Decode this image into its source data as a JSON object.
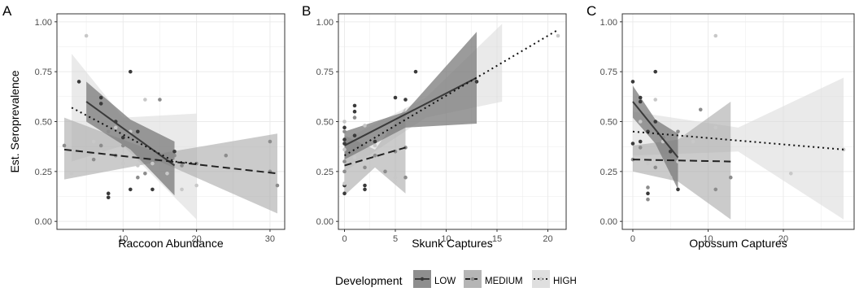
{
  "chart_data": [
    {
      "type": "scatter",
      "panel_label": "A",
      "xlabel": "Raccoon Abundance",
      "ylabel": "Est. Seroprevalence",
      "xlim": [
        1,
        32
      ],
      "ylim": [
        -0.04,
        1.04
      ],
      "xticks": [
        10,
        20,
        30
      ],
      "yticks": [
        0.0,
        0.25,
        0.5,
        0.75,
        1.0
      ],
      "ytick_labels": [
        "0.00",
        "0.25",
        "0.50",
        "0.75",
        "1.00"
      ],
      "grid": true,
      "series": [
        {
          "name": "LOW",
          "color": "#3a3a3a",
          "points": [
            [
              4,
              0.7
            ],
            [
              7,
              0.62
            ],
            [
              7,
              0.59
            ],
            [
              8,
              0.14
            ],
            [
              8,
              0.12
            ],
            [
              9,
              0.5
            ],
            [
              10,
              0.42
            ],
            [
              11,
              0.75
            ],
            [
              11,
              0.16
            ],
            [
              12,
              0.45
            ],
            [
              14,
              0.16
            ],
            [
              17,
              0.35
            ]
          ],
          "fit": [
            [
              5,
              0.6
            ],
            [
              17,
              0.28
            ]
          ],
          "band": [
            [
              5,
              0.7,
              0.5
            ],
            [
              11,
              0.51,
              0.36
            ],
            [
              17,
              0.4,
              0.13
            ]
          ]
        },
        {
          "name": "MEDIUM",
          "color": "#8c8c8c",
          "points": [
            [
              2,
              0.38
            ],
            [
              6,
              0.31
            ],
            [
              7,
              0.38
            ],
            [
              8,
              0.45
            ],
            [
              9,
              0.33
            ],
            [
              10,
              0.38
            ],
            [
              11,
              0.45
            ],
            [
              12,
              0.22
            ],
            [
              13,
              0.24
            ],
            [
              15,
              0.61
            ],
            [
              17,
              0.33
            ],
            [
              18,
              0.28
            ],
            [
              20,
              0.29
            ],
            [
              24,
              0.33
            ],
            [
              30,
              0.25
            ],
            [
              30,
              0.4
            ],
            [
              31,
              0.18
            ]
          ],
          "fit": [
            [
              2,
              0.36
            ],
            [
              31,
              0.24
            ]
          ],
          "band": [
            [
              2,
              0.52,
              0.21
            ],
            [
              15,
              0.34,
              0.3
            ],
            [
              31,
              0.44,
              0.04
            ]
          ]
        },
        {
          "name": "HIGH",
          "color": "#c8c8c8",
          "points": [
            [
              3,
              0.24
            ],
            [
              5,
              0.93
            ],
            [
              6,
              0.4
            ],
            [
              7,
              0.35
            ],
            [
              9,
              0.47
            ],
            [
              10,
              0.29
            ],
            [
              11,
              0.45
            ],
            [
              12,
              0.28
            ],
            [
              13,
              0.61
            ],
            [
              14,
              0.29
            ],
            [
              16,
              0.24
            ],
            [
              17,
              0.3
            ],
            [
              18,
              0.16
            ],
            [
              20,
              0.18
            ]
          ],
          "fit": [
            [
              3,
              0.57
            ],
            [
              17,
              0.3
            ],
            [
              20,
              0.29
            ]
          ],
          "band": [
            [
              3,
              0.84,
              0.3
            ],
            [
              10,
              0.52,
              0.38
            ],
            [
              20,
              0.54,
              0.01
            ]
          ]
        }
      ]
    },
    {
      "type": "scatter",
      "panel_label": "B",
      "xlabel": "Skunk Captures",
      "ylabel": "",
      "xlim": [
        -0.6,
        21.8
      ],
      "ylim": [
        -0.04,
        1.04
      ],
      "xticks": [
        0,
        5,
        10,
        15,
        20
      ],
      "yticks": [
        0.0,
        0.25,
        0.5,
        0.75,
        1.0
      ],
      "ytick_labels": [
        "0.00",
        "0.25",
        "0.50",
        "0.75",
        "1.00"
      ],
      "grid": true,
      "series": [
        {
          "name": "LOW",
          "color": "#3a3a3a",
          "points": [
            [
              0,
              0.47
            ],
            [
              0,
              0.41
            ],
            [
              0,
              0.39
            ],
            [
              0,
              0.18
            ],
            [
              0,
              0.14
            ],
            [
              1,
              0.58
            ],
            [
              1,
              0.55
            ],
            [
              1,
              0.43
            ],
            [
              2,
              0.18
            ],
            [
              2,
              0.16
            ],
            [
              3,
              0.4
            ],
            [
              5,
              0.62
            ],
            [
              6,
              0.61
            ],
            [
              7,
              0.75
            ],
            [
              13,
              0.7
            ]
          ],
          "fit": [
            [
              0,
              0.38
            ],
            [
              13,
              0.72
            ]
          ],
          "band": [
            [
              0,
              0.45,
              0.31
            ],
            [
              6,
              0.55,
              0.47
            ],
            [
              13,
              0.95,
              0.49
            ]
          ]
        },
        {
          "name": "MEDIUM",
          "color": "#8c8c8c",
          "points": [
            [
              0,
              0.45
            ],
            [
              0,
              0.3
            ],
            [
              0,
              0.25
            ],
            [
              1,
              0.52
            ],
            [
              1,
              0.38
            ],
            [
              2,
              0.27
            ],
            [
              3,
              0.33
            ],
            [
              4,
              0.25
            ],
            [
              5,
              0.35
            ],
            [
              6,
              0.22
            ],
            [
              6,
              0.37
            ]
          ],
          "fit": [
            [
              0,
              0.28
            ],
            [
              6,
              0.37
            ]
          ],
          "band": [
            [
              0,
              0.43,
              0.13
            ],
            [
              3,
              0.36,
              0.27
            ],
            [
              6,
              0.57,
              0.14
            ]
          ]
        },
        {
          "name": "HIGH",
          "color": "#c8c8c8",
          "points": [
            [
              0,
              0.5
            ],
            [
              0,
              0.36
            ],
            [
              0,
              0.19
            ],
            [
              1,
              0.32
            ],
            [
              1,
              0.29
            ],
            [
              2,
              0.48
            ],
            [
              3,
              0.38
            ],
            [
              5,
              0.22
            ],
            [
              5,
              0.2
            ],
            [
              21,
              0.93
            ]
          ],
          "fit": [
            [
              0,
              0.33
            ],
            [
              21,
              0.96
            ]
          ],
          "band": [
            [
              0,
              0.41,
              0.25
            ],
            [
              8,
              0.62,
              0.52
            ],
            [
              15.5,
              0.99,
              0.6
            ]
          ]
        }
      ]
    },
    {
      "type": "scatter",
      "panel_label": "C",
      "xlabel": "Opossum Captures",
      "ylabel": "",
      "xlim": [
        -1.4,
        29.4
      ],
      "ylim": [
        -0.04,
        1.04
      ],
      "xticks": [
        0,
        10,
        20
      ],
      "yticks": [
        0.0,
        0.25,
        0.5,
        0.75,
        1.0
      ],
      "ytick_labels": [
        "0.00",
        "0.25",
        "0.50",
        "0.75",
        "1.00"
      ],
      "grid": true,
      "series": [
        {
          "name": "LOW",
          "color": "#3a3a3a",
          "points": [
            [
              0,
              0.7
            ],
            [
              0,
              0.39
            ],
            [
              1,
              0.62
            ],
            [
              1,
              0.6
            ],
            [
              1,
              0.4
            ],
            [
              2,
              0.45
            ],
            [
              2,
              0.14
            ],
            [
              3,
              0.75
            ],
            [
              3,
              0.5
            ],
            [
              4,
              0.42
            ],
            [
              5,
              0.35
            ],
            [
              6,
              0.16
            ]
          ],
          "fit": [
            [
              0,
              0.6
            ],
            [
              6,
              0.32
            ]
          ],
          "band": [
            [
              0,
              0.68,
              0.52
            ],
            [
              3,
              0.51,
              0.39
            ],
            [
              6,
              0.44,
              0.16
            ]
          ]
        },
        {
          "name": "MEDIUM",
          "color": "#8c8c8c",
          "points": [
            [
              0,
              0.31
            ],
            [
              1,
              0.37
            ],
            [
              2,
              0.17
            ],
            [
              2,
              0.11
            ],
            [
              3,
              0.27
            ],
            [
              4,
              0.42
            ],
            [
              5,
              0.33
            ],
            [
              6,
              0.45
            ],
            [
              9,
              0.56
            ],
            [
              11,
              0.16
            ],
            [
              13,
              0.22
            ]
          ],
          "fit": [
            [
              0,
              0.31
            ],
            [
              13,
              0.3
            ]
          ],
          "band": [
            [
              0,
              0.38,
              0.25
            ],
            [
              6,
              0.41,
              0.2
            ],
            [
              13,
              0.6,
              0.01
            ]
          ]
        },
        {
          "name": "HIGH",
          "color": "#c8c8c8",
          "points": [
            [
              1,
              0.5
            ],
            [
              2,
              0.29
            ],
            [
              3,
              0.61
            ],
            [
              4,
              0.4
            ],
            [
              5,
              0.22
            ],
            [
              6,
              0.3
            ],
            [
              8,
              0.4
            ],
            [
              11,
              0.93
            ],
            [
              11,
              0.47
            ],
            [
              21,
              0.24
            ],
            [
              28,
              0.36
            ]
          ],
          "fit": [
            [
              0,
              0.45
            ],
            [
              28,
              0.36
            ]
          ],
          "band": [
            [
              0,
              0.55,
              0.33
            ],
            [
              14,
              0.47,
              0.35
            ],
            [
              28,
              0.72,
              0.01
            ]
          ]
        }
      ]
    }
  ],
  "legend": {
    "title": "Development",
    "placement": "bottom",
    "items": [
      {
        "label": "LOW",
        "color": "#3a3a3a",
        "dash": "solid"
      },
      {
        "label": "MEDIUM",
        "color": "#8c8c8c",
        "dash": "dashed"
      },
      {
        "label": "HIGH",
        "color": "#c8c8c8",
        "dash": "dotted"
      }
    ]
  }
}
